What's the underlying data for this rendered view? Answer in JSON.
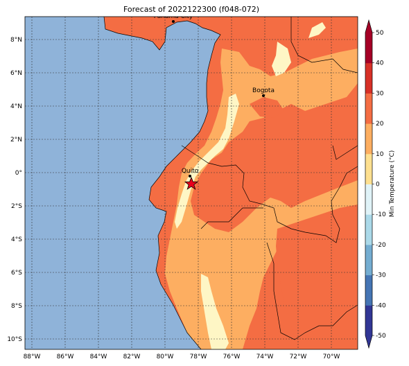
{
  "title": "Forecast of 2022122300 (f048-072)",
  "colorbar": {
    "label": "Min Temperature (°C)",
    "ticks": [
      "-50",
      "-40",
      "-30",
      "-20",
      "-10",
      "0",
      "10",
      "20",
      "30",
      "40",
      "50"
    ],
    "colors": [
      "#313695",
      "#4575b4",
      "#74add1",
      "#abd9e9",
      "#e0f3f8",
      "#ffffbf",
      "#fee090",
      "#fdae61",
      "#f46d43",
      "#d73027",
      "#a50026"
    ]
  },
  "axes": {
    "lon_labels": [
      "88°W",
      "86°W",
      "84°W",
      "82°W",
      "80°W",
      "78°W",
      "76°W",
      "74°W",
      "72°W",
      "70°W"
    ],
    "lat_labels": [
      "8°N",
      "6°N",
      "4°N",
      "2°N",
      "0°",
      "2°S",
      "4°S",
      "6°S",
      "8°S",
      "10°S"
    ]
  },
  "colors": {
    "ocean": "#8fb3d9",
    "band_10_20": "#fdae61",
    "band_20_30": "#f46d43",
    "band_0_10": "#fef6c5",
    "grid": "#333333"
  },
  "cities": [
    {
      "name": "Panama City"
    },
    {
      "name": "Bogota"
    },
    {
      "name": "Quito"
    }
  ],
  "marker": {
    "type": "star",
    "color": "#e8001c"
  }
}
